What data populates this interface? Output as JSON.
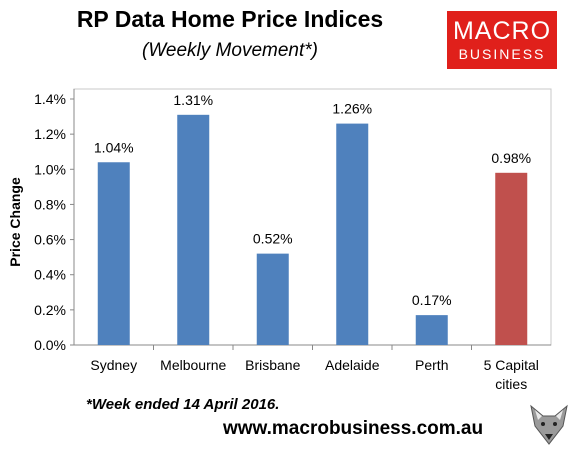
{
  "header": {
    "title": "RP Data Home Price Indices",
    "subtitle": "(Weekly Movement*)"
  },
  "logo": {
    "line1": "MACRO",
    "line2": "BUSINESS",
    "color": "#e0201b"
  },
  "footer": {
    "footnote": "*Week ended 14 April 2016.",
    "website": "www.macrobusiness.com.au",
    "mascot_icon": "fox-head-icon"
  },
  "chart_data": {
    "type": "bar",
    "title": "RP Data Home Price Indices",
    "subtitle": "(Weekly Movement*)",
    "ylabel": "Price Change",
    "xlabel": "",
    "categories": [
      "Sydney",
      "Melbourne",
      "Brisbane",
      "Adelaide",
      "Perth",
      "5 Capital cities"
    ],
    "category_lines": [
      [
        "Sydney"
      ],
      [
        "Melbourne"
      ],
      [
        "Brisbane"
      ],
      [
        "Adelaide"
      ],
      [
        "Perth"
      ],
      [
        "5 Capital",
        "cities"
      ]
    ],
    "values": [
      1.04,
      1.31,
      0.52,
      1.26,
      0.17,
      0.98
    ],
    "data_labels": [
      "1.04%",
      "1.31%",
      "0.52%",
      "1.26%",
      "0.17%",
      "0.98%"
    ],
    "colors": [
      "#4f81bd",
      "#4f81bd",
      "#4f81bd",
      "#4f81bd",
      "#4f81bd",
      "#c0504d"
    ],
    "ylim": [
      0,
      1.4
    ],
    "yticks": [
      0,
      0.2,
      0.4,
      0.6,
      0.8,
      1.0,
      1.2,
      1.4
    ],
    "ytick_labels": [
      "0.0%",
      "0.2%",
      "0.4%",
      "0.6%",
      "0.8%",
      "1.0%",
      "1.2%",
      "1.4%"
    ],
    "grid": false,
    "legend": "none"
  }
}
